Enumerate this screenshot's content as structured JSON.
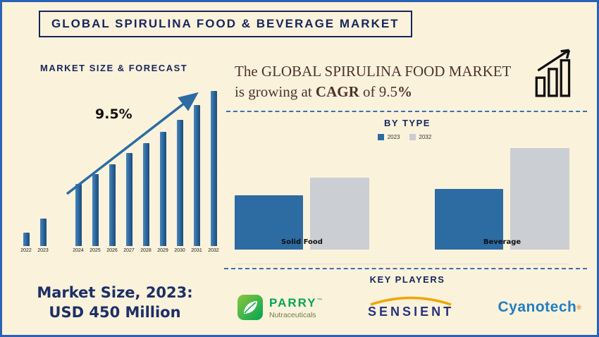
{
  "colors": {
    "background": "#fbf2dc",
    "border_blue": "#2b62b5",
    "navy": "#16265c",
    "bar_blue": "#2d6ba3",
    "bar_gray": "#c9cdd1",
    "dash_blue": "#3a6fb5",
    "headline_text": "#4e332b",
    "parry_green": "#00a651",
    "sensient_blue": "#26337b",
    "sensient_gold": "#f0a500",
    "cyanotech_blue": "#1f7ec2",
    "cyanotech_orange": "#f47920"
  },
  "header": {
    "title": "GLOBAL SPIRULINA FOOD & BEVERAGE MARKET"
  },
  "left": {
    "section_heading": "MARKET SIZE & FORECAST",
    "market_size_line1": "Market Size, 2023:",
    "market_size_line2": "USD 450 Million"
  },
  "right": {
    "headline_part1": "The GLOBAL  SPIRULINA FOOD MARKET is growing at ",
    "headline_bold1": "CAGR",
    "headline_part2": " of 9.5",
    "headline_bold2": "%",
    "by_type_heading": "BY TYPE",
    "key_players_heading": "KEY PLAYERS",
    "players": [
      {
        "name": "PARRY",
        "tm": "™",
        "sub": "Nutraceuticals"
      },
      {
        "name": "SENSIENT"
      },
      {
        "name": "Cyanotech",
        "reg": "®"
      }
    ]
  },
  "chart_data": [
    {
      "type": "bar",
      "title": "Market Size & Forecast",
      "categories": [
        "2022",
        "2023",
        "2024",
        "2025",
        "2026",
        "2027",
        "2028",
        "2029",
        "2030",
        "2031",
        "2032"
      ],
      "values": [
        8,
        17,
        38,
        44,
        50,
        57,
        63,
        70,
        77,
        86,
        95
      ],
      "value_unit": "percent_of_plot_height (no numeric axis shown; heights estimated from bars)",
      "annotation": "9.5%",
      "gap_after": "2023",
      "xlabel": "",
      "ylabel": "",
      "grid": false,
      "legend_position": "none"
    },
    {
      "type": "bar",
      "title": "By Type",
      "categories": [
        "Solid Food",
        "Beverage"
      ],
      "series": [
        {
          "name": "2023",
          "values": [
            52,
            58
          ]
        },
        {
          "name": "2032",
          "values": [
            69,
            97
          ]
        }
      ],
      "value_unit": "percent_of_plot_height (no numeric axis shown; heights estimated from bars)",
      "grid": false,
      "legend_position": "top"
    }
  ]
}
